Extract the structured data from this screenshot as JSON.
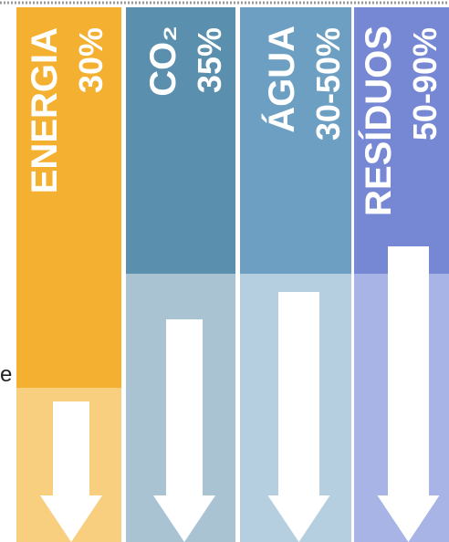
{
  "columns": [
    {
      "label": "ENERGIA",
      "value": "30%"
    },
    {
      "label": "CO₂",
      "value": "35%"
    },
    {
      "label": "ÁGUA",
      "value": "30-50%"
    },
    {
      "label": "RESÍDUOS",
      "value": "50-90%"
    }
  ],
  "fragment": "e"
}
